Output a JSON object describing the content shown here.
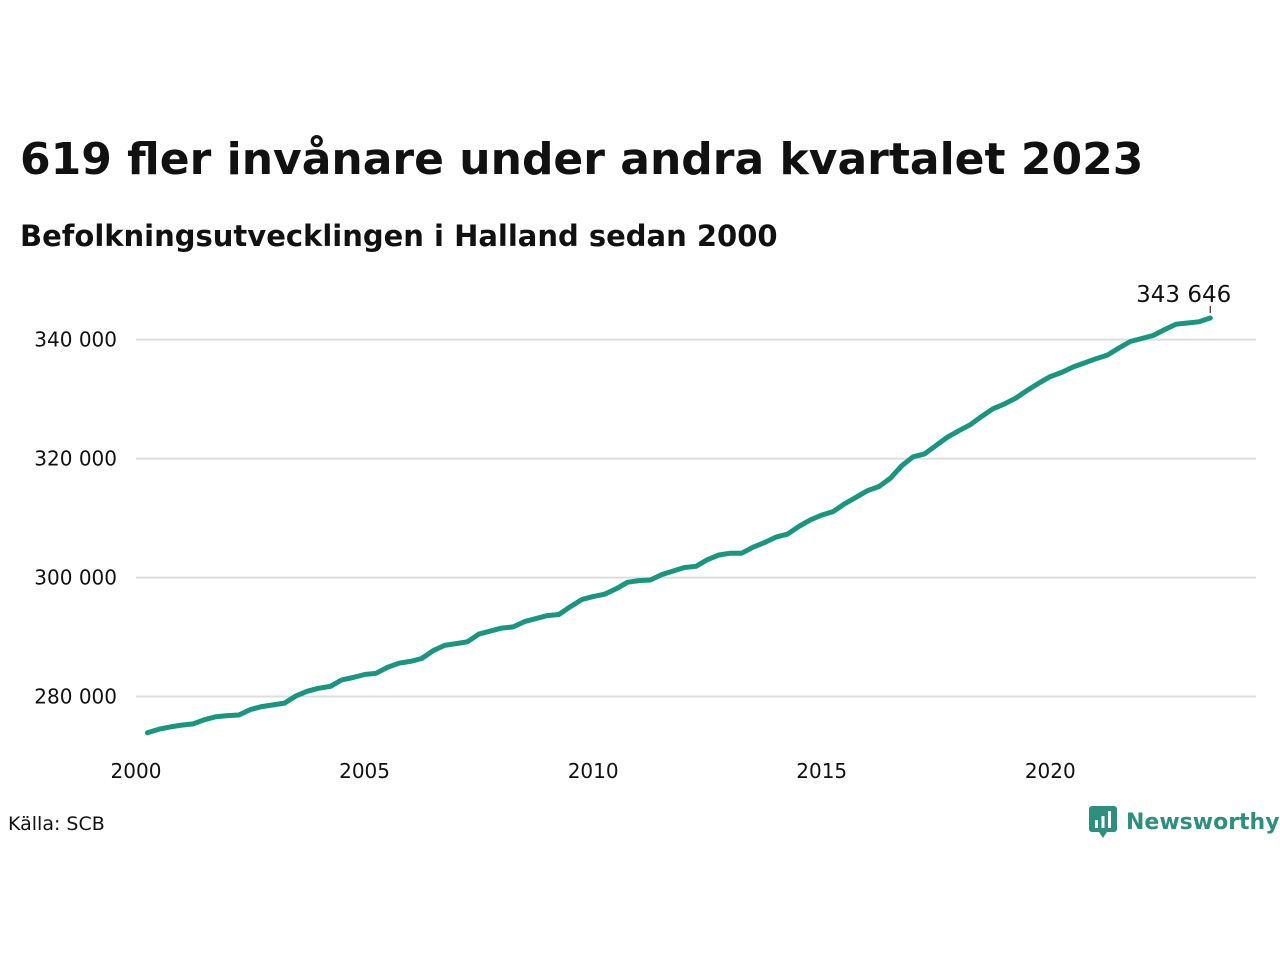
{
  "title": "619 fler invånare under andra kvartalet 2023",
  "subtitle": "Befolkningsutvecklingen i Halland sedan 2000",
  "source": "Källa: SCB",
  "brand": {
    "name": "Newsworthy",
    "icon": "newsworthy-logo-icon",
    "color": "#2f8f7f"
  },
  "colors": {
    "line": "#1a9680",
    "grid": "#dddddd"
  },
  "chart_data": {
    "type": "line",
    "title": "619 fler invånare under andra kvartalet 2023",
    "subtitle": "Befolkningsutvecklingen i Halland sedan 2000",
    "xlabel": "",
    "ylabel": "",
    "xlim": [
      2000,
      2024.5
    ],
    "ylim": [
      270000,
      346000
    ],
    "x_ticks": [
      2000,
      2005,
      2010,
      2015,
      2020
    ],
    "x_tick_labels": [
      "2000",
      "2005",
      "2010",
      "2015",
      "2020"
    ],
    "y_ticks": [
      280000,
      300000,
      320000,
      340000
    ],
    "y_tick_labels": [
      "280 000",
      "300 000",
      "320 000",
      "340 000"
    ],
    "grid": "horizontal",
    "end_label": "343 646",
    "series": [
      {
        "x": [
          2000.25,
          2000.5,
          2000.75,
          2001.0,
          2001.25,
          2001.5,
          2001.75,
          2002.0,
          2002.25,
          2002.5,
          2002.75,
          2003.0,
          2003.25,
          2003.5,
          2003.75,
          2004.0,
          2004.25,
          2004.5,
          2004.75,
          2005.0,
          2005.25,
          2005.5,
          2005.75,
          2006.0,
          2006.25,
          2006.5,
          2006.75,
          2007.0,
          2007.25,
          2007.5,
          2007.75,
          2008.0,
          2008.25,
          2008.5,
          2008.75,
          2009.0,
          2009.25,
          2009.5,
          2009.75,
          2010.0,
          2010.25,
          2010.5,
          2010.75,
          2011.0,
          2011.25,
          2011.5,
          2011.75,
          2012.0,
          2012.25,
          2012.5,
          2012.75,
          2013.0,
          2013.25,
          2013.5,
          2013.75,
          2014.0,
          2014.25,
          2014.5,
          2014.75,
          2015.0,
          2015.25,
          2015.5,
          2015.75,
          2016.0,
          2016.25,
          2016.5,
          2016.75,
          2017.0,
          2017.25,
          2017.5,
          2017.75,
          2018.0,
          2018.25,
          2018.5,
          2018.75,
          2019.0,
          2019.25,
          2019.5,
          2019.75,
          2020.0,
          2020.25,
          2020.5,
          2020.75,
          2021.0,
          2021.25,
          2021.5,
          2021.75,
          2022.0,
          2022.25,
          2022.5,
          2022.75,
          2023.0,
          2023.25,
          2023.5
        ],
        "values": [
          273900,
          274500,
          274900,
          275200,
          275400,
          276100,
          276600,
          276800,
          276900,
          277800,
          278300,
          278600,
          278900,
          280100,
          280900,
          281400,
          281700,
          282800,
          283200,
          283700,
          283900,
          284900,
          285600,
          285900,
          286400,
          287700,
          288600,
          288900,
          289200,
          290500,
          291000,
          291500,
          291700,
          292600,
          293100,
          293600,
          293800,
          295100,
          296300,
          296800,
          297200,
          298100,
          299200,
          299500,
          299600,
          300500,
          301100,
          301700,
          301900,
          303000,
          303800,
          304100,
          304100,
          305100,
          305900,
          306800,
          307300,
          308600,
          309700,
          310500,
          311100,
          312400,
          313500,
          314600,
          315300,
          316700,
          318800,
          320300,
          320800,
          322200,
          323600,
          324700,
          325700,
          327100,
          328400,
          329200,
          330200,
          331500,
          332700,
          333800,
          334500,
          335400,
          336100,
          336800,
          337400,
          338600,
          339700,
          340200,
          340700,
          341700,
          342600,
          342800,
          343000,
          343646
        ]
      }
    ]
  }
}
